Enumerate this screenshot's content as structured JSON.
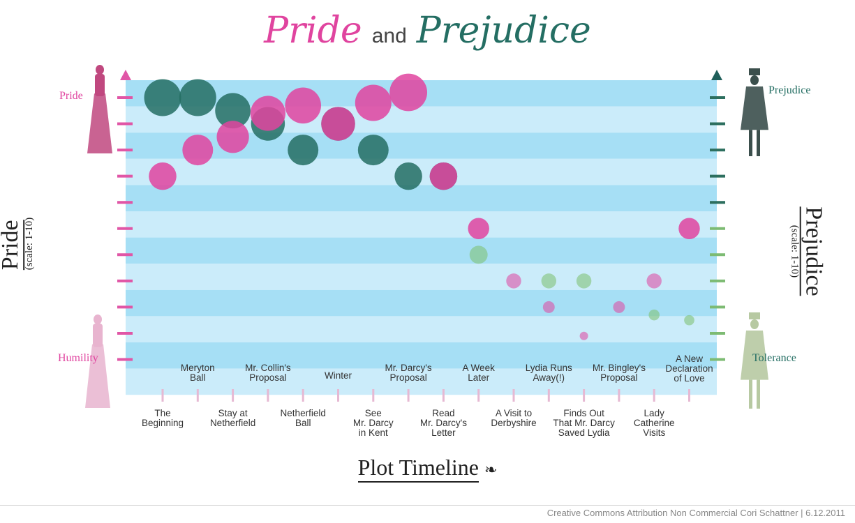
{
  "title": {
    "pride": "Pride",
    "and": "and",
    "prejudice": "Prejudice"
  },
  "colors": {
    "pride": "#e0449f",
    "prejudice": "#246e63",
    "band_dark": "#a6dff5",
    "band_light": "#cbecfa",
    "axis_left": "#e056a6",
    "axis_right": "#2d7a64"
  },
  "left_axis": {
    "top_label": "Pride",
    "bottom_label": "Humility",
    "title": "Pride",
    "subtitle": "(scale: 1-10)"
  },
  "right_axis": {
    "top_label": "Prejudice",
    "bottom_label": "Tolerance",
    "title": "Prejudice",
    "subtitle": "(scale: 1-10)"
  },
  "x_axis_title": "Plot Timeline",
  "footer": "Creative Commons Attribution Non Commercial Cori Schattner  |  6.12.2011",
  "chart_data": {
    "type": "scatter",
    "title": "Pride and Prejudice",
    "xlabel": "Plot Timeline",
    "ylabel": "Pride (scale: 1-10)",
    "y2label": "Prejudice (scale: 1-10)",
    "ylim": [
      1,
      10
    ],
    "categories": [
      "The Beginning",
      "Meryton Ball",
      "Stay at Netherfield",
      "Mr. Collin's Proposal",
      "Netherfield Ball",
      "Winter",
      "See Mr. Darcy in Kent",
      "Mr. Darcy's Proposal",
      "Read Mr. Darcy's Letter",
      "A Week Later",
      "A Visit to Derbyshire",
      "Lydia Runs Away(!)",
      "Finds Out That Mr. Darcy Saved Lydia",
      "Mr. Bingley's Proposal",
      "Lady Catherine Visits",
      "A New Declaration of Love"
    ],
    "series": [
      {
        "name": "Pride",
        "values": [
          7,
          8,
          8.5,
          9.4,
          9.7,
          9,
          9.8,
          10.2,
          7,
          5,
          3,
          2,
          0.9,
          2,
          3,
          5
        ]
      },
      {
        "name": "Prejudice",
        "values": [
          10,
          10,
          9.5,
          9,
          8,
          9,
          8,
          7,
          7,
          4,
          null,
          3,
          3,
          null,
          1.7,
          1.5
        ]
      }
    ]
  }
}
